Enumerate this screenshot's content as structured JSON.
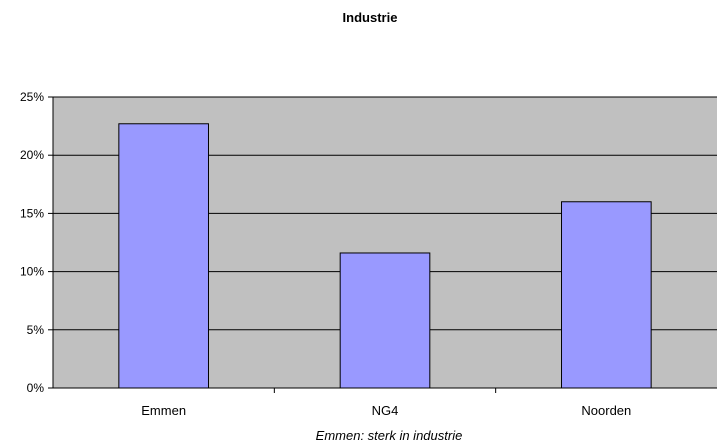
{
  "chart_data": {
    "type": "bar",
    "title": "Industrie",
    "xlabel": "Emmen: sterk in industrie",
    "ylabel": "",
    "categories": [
      "Emmen",
      "NG4",
      "Noorden"
    ],
    "values": [
      22.7,
      11.6,
      16.0
    ],
    "ylim": [
      0,
      25
    ],
    "yticks": [
      0,
      5,
      10,
      15,
      20,
      25
    ],
    "ytick_labels": [
      "0%",
      "5%",
      "10%",
      "15%",
      "20%",
      "25%"
    ],
    "grid": true,
    "legend": "none",
    "colors": {
      "bar": "#9999ff",
      "plot_background": "#c0c0c0",
      "gridline": "#000000"
    }
  }
}
